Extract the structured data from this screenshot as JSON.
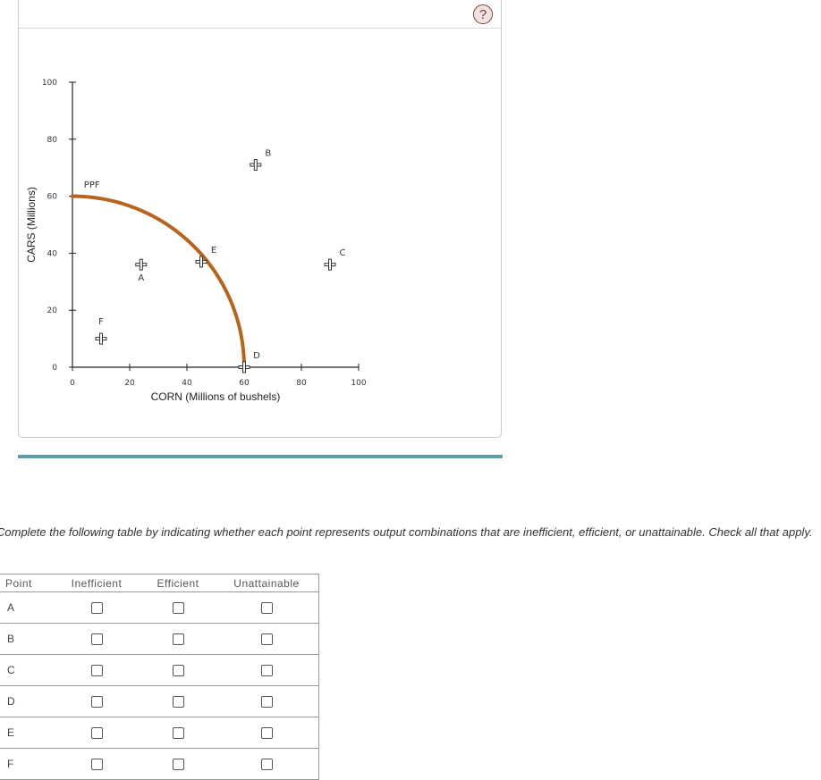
{
  "help_label": "?",
  "chart_data": {
    "type": "scatter",
    "xlabel": "CORN (Millions of bushels)",
    "ylabel": "CARS (Millions)",
    "xlim": [
      0,
      100
    ],
    "ylim": [
      0,
      100
    ],
    "x_ticks": [
      "0",
      "20",
      "40",
      "60",
      "80",
      "100"
    ],
    "y_ticks": [
      "0",
      "20",
      "40",
      "60",
      "80",
      "100"
    ],
    "curve": {
      "name": "PPF",
      "label": "PPF",
      "x_intercept": 60,
      "y_intercept": 60,
      "color": "#b5651d"
    },
    "points": [
      {
        "label": "A",
        "x": 24,
        "y": 36
      },
      {
        "label": "B",
        "x": 64,
        "y": 71
      },
      {
        "label": "C",
        "x": 90,
        "y": 36
      },
      {
        "label": "D",
        "x": 60,
        "y": 0
      },
      {
        "label": "E",
        "x": 45,
        "y": 37
      },
      {
        "label": "F",
        "x": 10,
        "y": 10
      }
    ]
  },
  "instructions": "Complete the following table by indicating whether each point represents output combinations that are inefficient, efficient, or unattainable. Check all that apply.",
  "table": {
    "headers": [
      "Point",
      "Inefficient",
      "Efficient",
      "Unattainable"
    ],
    "rows": [
      {
        "point": "A"
      },
      {
        "point": "B"
      },
      {
        "point": "C"
      },
      {
        "point": "D"
      },
      {
        "point": "E"
      },
      {
        "point": "F"
      }
    ]
  }
}
